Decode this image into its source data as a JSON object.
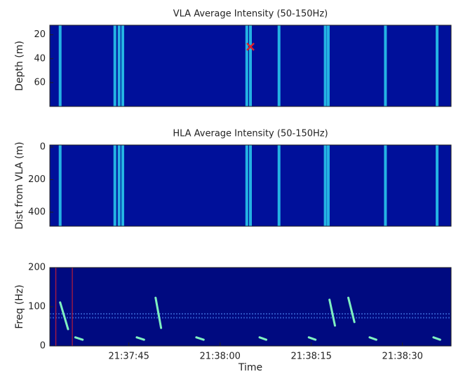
{
  "chart_data": [
    {
      "type": "heatmap",
      "title": "VLA Average Intensity (50-150Hz)",
      "y_label": "Depth (m)",
      "xlim": [
        77852,
        77918
      ],
      "ylim": [
        12,
        80
      ],
      "y_inverted": true,
      "yticks": [
        20,
        40,
        60
      ],
      "background_color": "#00109a",
      "stripe_color": "#2ad0f0",
      "stripe_times": [
        77853.7,
        77862.7,
        77863.4,
        77864.0,
        77884.4,
        77885.0,
        77889.7,
        77897.3,
        77897.8,
        77907.2,
        77915.7
      ],
      "marker": {
        "x": 77885.0,
        "y": 30,
        "color": "#e0202a"
      }
    },
    {
      "type": "heatmap",
      "title": "HLA Average Intensity (50-150Hz)",
      "y_label": "Dist from VLA (m)",
      "xlim": [
        77852,
        77918
      ],
      "ylim": [
        -13,
        486
      ],
      "y_inverted": true,
      "yticks": [
        0,
        200,
        400
      ],
      "background_color": "#00109a",
      "stripe_color": "#2ad0f0",
      "stripe_times": [
        77853.7,
        77862.7,
        77863.4,
        77864.0,
        77884.4,
        77885.0,
        77889.7,
        77897.3,
        77897.8,
        77907.2,
        77915.7
      ]
    },
    {
      "type": "spectrogram",
      "y_label": "Freq (Hz)",
      "x_label": "Time",
      "xlim": [
        77852,
        77918
      ],
      "ylim": [
        0,
        200
      ],
      "yticks": [
        0,
        100,
        200
      ],
      "xticks": [
        {
          "value": 77865,
          "label": "21:37:45"
        },
        {
          "value": 77880,
          "label": "21:38:00"
        },
        {
          "value": 77895,
          "label": "21:38:15"
        },
        {
          "value": 77910,
          "label": "21:38:30"
        }
      ],
      "background_color": "#000a80",
      "call_color": "#7ff0c0",
      "cursor_color": "#e0202a",
      "cursor_times": [
        77853.0,
        77855.7
      ],
      "noise_bands_hz": [
        72,
        82
      ],
      "calls": [
        {
          "t": [
            77853.7,
            77855.0
          ],
          "f": [
            111,
            43
          ]
        },
        {
          "t": [
            77869.4,
            77870.3
          ],
          "f": [
            123,
            46
          ]
        },
        {
          "t": [
            77898.0,
            77898.9
          ],
          "f": [
            118,
            52
          ]
        },
        {
          "t": [
            77901.1,
            77902.1
          ],
          "f": [
            123,
            61
          ]
        },
        {
          "t": [
            77856.2,
            77857.4
          ],
          "f": [
            22,
            16
          ]
        },
        {
          "t": [
            77866.3,
            77867.5
          ],
          "f": [
            22,
            16
          ]
        },
        {
          "t": [
            77876.1,
            77877.3
          ],
          "f": [
            22,
            16
          ]
        },
        {
          "t": [
            77886.5,
            77887.6
          ],
          "f": [
            22,
            16
          ]
        },
        {
          "t": [
            77894.6,
            77895.7
          ],
          "f": [
            22,
            16
          ]
        },
        {
          "t": [
            77904.6,
            77905.7
          ],
          "f": [
            22,
            16
          ]
        },
        {
          "t": [
            77915.1,
            77916.2
          ],
          "f": [
            22,
            16
          ]
        }
      ]
    }
  ]
}
